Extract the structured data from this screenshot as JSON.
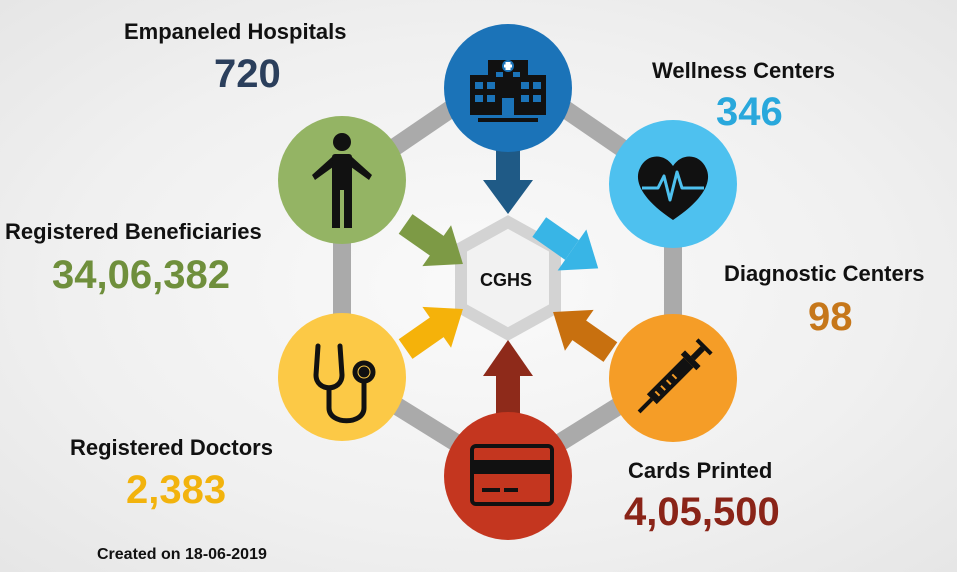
{
  "center_label": "CGHS",
  "footer": "Created on 18-06-2019",
  "stats": {
    "hospitals": {
      "label": "Empaneled Hospitals",
      "value": "720",
      "color": "#2b3f5c",
      "circle": "#1b73b8",
      "icon": "hospital-icon"
    },
    "wellness": {
      "label": "Wellness Centers",
      "value": "346",
      "color": "#29a8dc",
      "circle": "#4ec1ef",
      "icon": "heart-pulse-icon"
    },
    "diagnostic": {
      "label": "Diagnostic Centers",
      "value": "98",
      "color": "#c6771a",
      "circle": "#f59d27",
      "icon": "syringe-icon"
    },
    "cards": {
      "label": "Cards Printed",
      "value": "4,05,500",
      "color": "#8a2418",
      "circle": "#c4361f",
      "icon": "card-icon"
    },
    "doctors": {
      "label": "Registered Doctors",
      "value": "2,383",
      "color": "#f2b30d",
      "circle": "#fcc946",
      "icon": "stethoscope-icon"
    },
    "beneficiaries": {
      "label": "Registered Beneficiaries",
      "value": "34,06,382",
      "color": "#6f8f3c",
      "circle": "#94b464",
      "icon": "person-icon"
    }
  }
}
